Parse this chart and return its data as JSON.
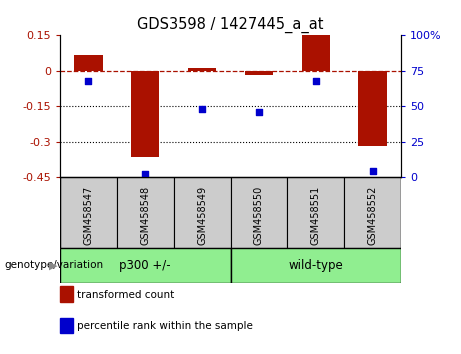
{
  "title": "GDS3598 / 1427445_a_at",
  "samples": [
    "GSM458547",
    "GSM458548",
    "GSM458549",
    "GSM458550",
    "GSM458551",
    "GSM458552"
  ],
  "bar_values": [
    0.065,
    -0.365,
    0.01,
    -0.018,
    0.15,
    -0.32
  ],
  "percentile_values": [
    68,
    2,
    48,
    46,
    68,
    4
  ],
  "groups": [
    {
      "label": "p300 +/-",
      "samples_idx": [
        0,
        1,
        2
      ],
      "color": "#90ee90"
    },
    {
      "label": "wild-type",
      "samples_idx": [
        3,
        4,
        5
      ],
      "color": "#90ee90"
    }
  ],
  "group_label": "genotype/variation",
  "ylim_left": [
    -0.45,
    0.15
  ],
  "ylim_right": [
    0,
    100
  ],
  "yticks_left": [
    0.15,
    0.0,
    -0.15,
    -0.3,
    -0.45
  ],
  "ytick_labels_left": [
    "0.15",
    "0",
    "-0.15",
    "-0.3",
    "-0.45"
  ],
  "yticks_right": [
    100,
    75,
    50,
    25,
    0
  ],
  "ytick_labels_right": [
    "100%",
    "75",
    "50",
    "25",
    "0"
  ],
  "bar_color": "#aa1100",
  "percentile_color": "#0000cc",
  "hline_color": "#aa1100",
  "hline_style": "--",
  "dotted_lines": [
    -0.15,
    -0.3
  ],
  "legend_items": [
    {
      "color": "#aa1100",
      "label": "transformed count"
    },
    {
      "color": "#0000cc",
      "label": "percentile rank within the sample"
    }
  ],
  "bar_width": 0.5,
  "sample_cell_color": "#cccccc",
  "background_color": "#ffffff"
}
